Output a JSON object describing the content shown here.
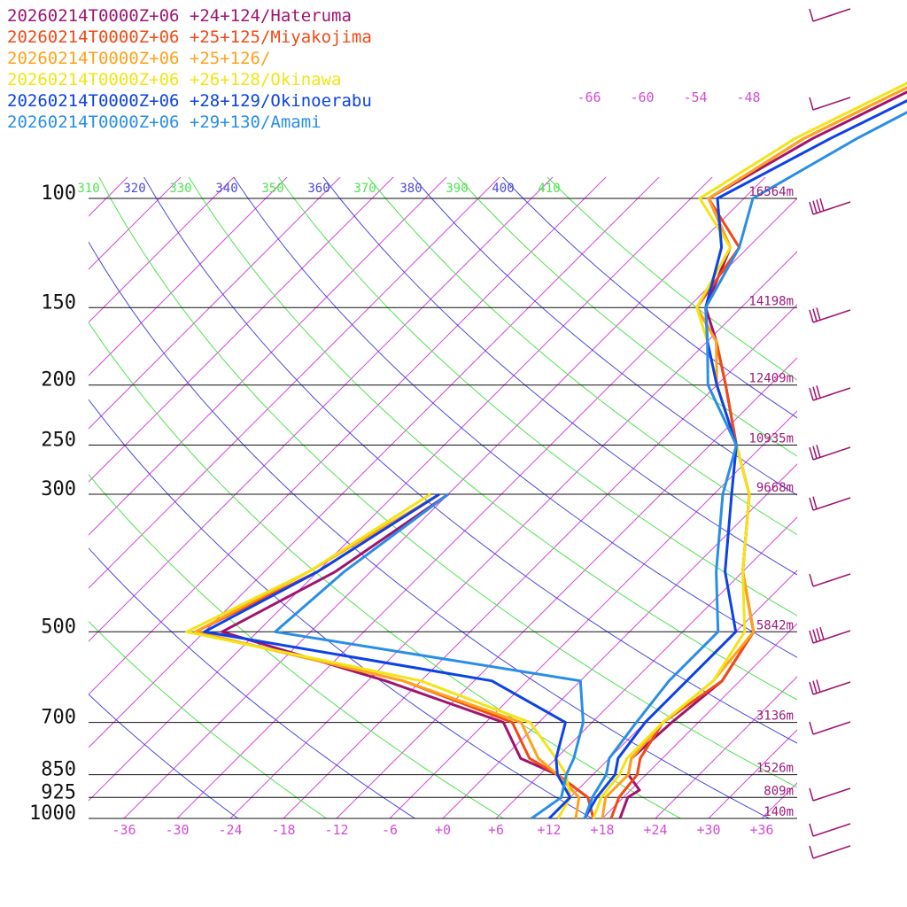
{
  "chart_data": {
    "type": "line",
    "subtype": "skew-t log-p sounding",
    "title": "",
    "xlabel": "",
    "ylabel": "",
    "pressure_axis": {
      "levels": [
        100,
        150,
        200,
        250,
        300,
        500,
        700,
        850,
        925,
        1000
      ],
      "range": [
        1000,
        100
      ],
      "scale": "log"
    },
    "temperature_axis": {
      "ticks": [
        "-36",
        "-30",
        "-24",
        "-18",
        "-12",
        "-6",
        "+0",
        "+6",
        "+12",
        "+18",
        "+24",
        "+30",
        "+36"
      ],
      "range": [
        -40,
        40
      ]
    },
    "heights": [
      {
        "p": 100,
        "label": "16564m"
      },
      {
        "p": 150,
        "label": "14198m"
      },
      {
        "p": 200,
        "label": "12409m"
      },
      {
        "p": 250,
        "label": "10935m"
      },
      {
        "p": 300,
        "label": "9668m"
      },
      {
        "p": 500,
        "label": "5842m"
      },
      {
        "p": 700,
        "label": "3136m"
      },
      {
        "p": 850,
        "label": "1526m"
      },
      {
        "p": 925,
        "label": "809m"
      },
      {
        "p": 1000,
        "label": "140m"
      }
    ],
    "theta_labels": [
      "310",
      "320",
      "330",
      "340",
      "350",
      "360",
      "370",
      "380",
      "390",
      "400",
      "410"
    ],
    "mixing_ratio_labels": [
      "-66",
      "-60",
      "-54",
      "-48"
    ],
    "wind_barbs": {
      "count": 14,
      "color": "#a0146e"
    },
    "series": [
      {
        "name": "20260214T0000Z+06 +24+124/Hateruma",
        "color": "#a0146e",
        "temperature": [
          [
            1000,
            20
          ],
          [
            925,
            18.5
          ],
          [
            900,
            19
          ],
          [
            850,
            16
          ],
          [
            800,
            14.5
          ],
          [
            700,
            15
          ],
          [
            600,
            16
          ],
          [
            500,
            14
          ],
          [
            400,
            6
          ],
          [
            300,
            -2
          ],
          [
            250,
            -9
          ],
          [
            200,
            -17
          ],
          [
            170,
            -23
          ],
          [
            150,
            -28
          ],
          [
            120,
            -32
          ],
          [
            100,
            -40
          ],
          [
            80,
            -35
          ],
          [
            60,
            -26
          ],
          [
            40,
            -14
          ]
        ],
        "dewpoint": [
          [
            1000,
            17
          ],
          [
            925,
            14
          ],
          [
            850,
            8
          ],
          [
            800,
            2
          ],
          [
            700,
            -4
          ],
          [
            600,
            -22
          ],
          [
            500,
            -46
          ],
          [
            400,
            -40
          ],
          [
            300,
            -36
          ]
        ]
      },
      {
        "name": "20260214T0000Z+06 +25+125/Miyakojima",
        "color": "#f04a16",
        "temperature": [
          [
            1000,
            19
          ],
          [
            925,
            17.5
          ],
          [
            850,
            17
          ],
          [
            800,
            15.5
          ],
          [
            700,
            14
          ],
          [
            600,
            16
          ],
          [
            500,
            14
          ],
          [
            400,
            6
          ],
          [
            300,
            -2
          ],
          [
            250,
            -9
          ],
          [
            200,
            -17
          ],
          [
            170,
            -23
          ],
          [
            150,
            -29
          ],
          [
            120,
            -31
          ],
          [
            100,
            -40
          ],
          [
            80,
            -36
          ],
          [
            60,
            -27
          ],
          [
            40,
            -15
          ]
        ],
        "dewpoint": [
          [
            1000,
            17
          ],
          [
            925,
            14
          ],
          [
            850,
            8
          ],
          [
            800,
            3
          ],
          [
            700,
            -3
          ],
          [
            600,
            -20
          ],
          [
            500,
            -49
          ],
          [
            400,
            -42
          ],
          [
            300,
            -37
          ]
        ]
      },
      {
        "name": "20260214T0000Z+06 +25+126/",
        "color": "#ffa21a",
        "temperature": [
          [
            1000,
            18
          ],
          [
            925,
            16
          ],
          [
            850,
            16
          ],
          [
            800,
            14.5
          ],
          [
            700,
            14
          ],
          [
            600,
            15
          ],
          [
            500,
            14
          ],
          [
            400,
            6
          ],
          [
            300,
            -2
          ],
          [
            250,
            -9
          ],
          [
            200,
            -18
          ],
          [
            170,
            -23
          ],
          [
            150,
            -29
          ],
          [
            120,
            -32
          ],
          [
            100,
            -40
          ],
          [
            80,
            -36
          ],
          [
            60,
            -27
          ],
          [
            40,
            -16
          ]
        ],
        "dewpoint": [
          [
            1000,
            15
          ],
          [
            925,
            13
          ],
          [
            850,
            8
          ],
          [
            800,
            4
          ],
          [
            700,
            -2
          ],
          [
            600,
            -20
          ],
          [
            500,
            -49
          ],
          [
            400,
            -43
          ],
          [
            300,
            -37
          ]
        ]
      },
      {
        "name": "20260214T0000Z+06 +26+128/Okinawa",
        "color": "#f2e416",
        "temperature": [
          [
            1000,
            17
          ],
          [
            925,
            15.5
          ],
          [
            850,
            15
          ],
          [
            800,
            14
          ],
          [
            700,
            14
          ],
          [
            600,
            15
          ],
          [
            500,
            13
          ],
          [
            400,
            6
          ],
          [
            300,
            -2
          ],
          [
            250,
            -9
          ],
          [
            200,
            -18
          ],
          [
            170,
            -24
          ],
          [
            150,
            -29
          ],
          [
            120,
            -32
          ],
          [
            100,
            -41
          ],
          [
            80,
            -37
          ],
          [
            60,
            -28
          ],
          [
            40,
            -16
          ]
        ],
        "dewpoint": [
          [
            1000,
            13
          ],
          [
            925,
            12
          ],
          [
            850,
            9
          ],
          [
            800,
            6
          ],
          [
            700,
            -1
          ],
          [
            600,
            -18
          ],
          [
            500,
            -50
          ],
          [
            400,
            -43
          ],
          [
            300,
            -38
          ]
        ]
      },
      {
        "name": "20260214T0000Z+06 +28+129/Okinoerabu",
        "color": "#0c42e6",
        "temperature": [
          [
            1000,
            16
          ],
          [
            925,
            15
          ],
          [
            850,
            14.5
          ],
          [
            800,
            13
          ],
          [
            700,
            12
          ],
          [
            600,
            12
          ],
          [
            500,
            12
          ],
          [
            400,
            4
          ],
          [
            300,
            -4
          ],
          [
            250,
            -9
          ],
          [
            200,
            -18
          ],
          [
            170,
            -24
          ],
          [
            150,
            -28
          ],
          [
            120,
            -33
          ],
          [
            100,
            -39
          ],
          [
            80,
            -33
          ],
          [
            60,
            -24
          ],
          [
            40,
            -15
          ]
        ],
        "dewpoint": [
          [
            1000,
            12
          ],
          [
            925,
            12
          ],
          [
            850,
            8
          ],
          [
            800,
            6
          ],
          [
            700,
            3
          ],
          [
            600,
            -10
          ],
          [
            500,
            -48
          ],
          [
            400,
            -42
          ],
          [
            300,
            -37
          ]
        ]
      },
      {
        "name": "20260214T0000Z+06 +29+130/Amami",
        "color": "#2a8ee6",
        "temperature": [
          [
            1000,
            16
          ],
          [
            925,
            14.5
          ],
          [
            850,
            13.5
          ],
          [
            800,
            12
          ],
          [
            700,
            11
          ],
          [
            600,
            10
          ],
          [
            500,
            10
          ],
          [
            400,
            3
          ],
          [
            300,
            -5
          ],
          [
            250,
            -9
          ],
          [
            200,
            -19
          ],
          [
            170,
            -24
          ],
          [
            150,
            -28
          ],
          [
            120,
            -31
          ],
          [
            100,
            -35
          ],
          [
            80,
            -30
          ],
          [
            60,
            -22
          ],
          [
            40,
            -13
          ]
        ],
        "dewpoint": [
          [
            1000,
            10
          ],
          [
            925,
            11
          ],
          [
            850,
            9
          ],
          [
            800,
            8
          ],
          [
            700,
            5
          ],
          [
            600,
            0
          ],
          [
            500,
            -40
          ],
          [
            400,
            -39
          ],
          [
            300,
            -36
          ]
        ]
      }
    ]
  }
}
